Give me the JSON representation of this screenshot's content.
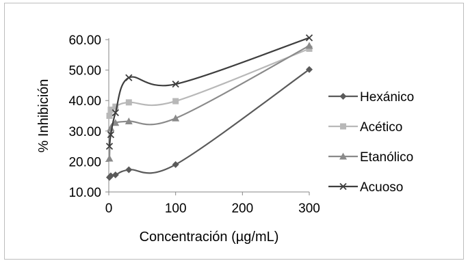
{
  "chart_data": {
    "type": "line",
    "title": "",
    "xlabel": "Concentración (µg/mL)",
    "ylabel": "% Inhibición",
    "xlim": [
      0,
      300
    ],
    "ylim": [
      10,
      60
    ],
    "xticks": [
      0,
      100,
      200,
      300
    ],
    "yticks": [
      10,
      20,
      30,
      40,
      50,
      60
    ],
    "xtick_labels": [
      "0",
      "100",
      "200",
      "300"
    ],
    "ytick_labels": [
      "10.00",
      "20.00",
      "30.00",
      "40.00",
      "50.00",
      "60.00"
    ],
    "grid": false,
    "legend_position": "right",
    "series": [
      {
        "name": "Hexánico",
        "marker": "diamond",
        "color": "#5a5a5a",
        "x": [
          1,
          3,
          10,
          30,
          100,
          300
        ],
        "y": [
          14.8,
          15.3,
          15.6,
          17.3,
          19.0,
          50.2
        ]
      },
      {
        "name": "Acético",
        "marker": "square",
        "color": "#b8b8b8",
        "x": [
          1,
          3,
          10,
          30,
          100,
          300
        ],
        "y": [
          35.0,
          37.0,
          38.0,
          39.4,
          39.8,
          57.0
        ]
      },
      {
        "name": "Etanólico",
        "marker": "triangle",
        "color": "#8a8a8a",
        "x": [
          1,
          3,
          10,
          30,
          100,
          300
        ],
        "y": [
          21.0,
          31.0,
          32.7,
          33.2,
          34.2,
          58.0
        ]
      },
      {
        "name": "Acuoso",
        "marker": "x",
        "color": "#3e3e3e",
        "x": [
          1,
          3,
          10,
          30,
          100,
          300
        ],
        "y": [
          25.0,
          28.8,
          36.0,
          47.5,
          45.4,
          60.6
        ]
      }
    ]
  }
}
